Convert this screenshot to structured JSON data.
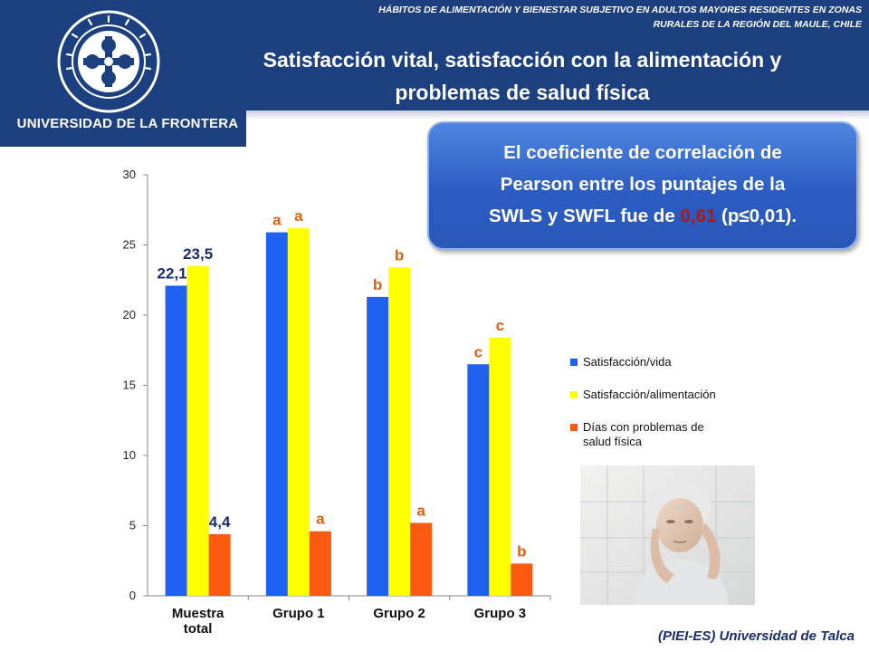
{
  "header": {
    "top_note_line1": "HÁBITOS DE ALIMENTACIÓN Y BIENESTAR SUBJETIVO EN ADULTOS MAYORES RESIDENTES EN ZONAS",
    "top_note_line2": "RURALES DE LA REGIÓN DEL MAULE, CHILE",
    "title_line1": "Satisfacción vital, satisfacción con la alimentación y",
    "title_line2": "problemas de salud física",
    "logo_name": "UNIVERSIDAD DE LA FRONTERA"
  },
  "callout": {
    "line1": "El coeficiente de correlación de",
    "line2": "Pearson entre los puntajes de la",
    "line3_pre": "SWLS y SWFL fue de ",
    "line3_value": "0,61",
    "line3_post": " (p≤0,01)."
  },
  "footer": {
    "text": "(PIEI-ES) Universidad de Talca"
  },
  "colors": {
    "header_bg": "#1b3f7f",
    "series_1": "#1f62f0",
    "series_2": "#ffff00",
    "series_3": "#fb5a10",
    "letter_label": "#e0600e",
    "value_label": "#1a2e6e"
  },
  "chart_data": {
    "type": "bar",
    "categories": [
      [
        "Muestra",
        "total"
      ],
      [
        "Grupo 1"
      ],
      [
        "Grupo 2"
      ],
      [
        "Grupo 3"
      ]
    ],
    "series": [
      {
        "name": "Satisfacción/vida",
        "values": [
          22.1,
          25.9,
          21.3,
          16.5
        ]
      },
      {
        "name": "Satisfacción/alimentación",
        "values": [
          23.5,
          26.2,
          23.4,
          18.4
        ]
      },
      {
        "name": "Días con problemas de salud física",
        "values": [
          4.4,
          4.6,
          5.2,
          2.3
        ]
      }
    ],
    "legend_lines": [
      [
        "Satisfacción/vida"
      ],
      [
        "Satisfacción/alimentación"
      ],
      [
        "Días con problemas de",
        "salud física"
      ]
    ],
    "value_labels": [
      {
        "category": 0,
        "series": 0,
        "text": "22,1"
      },
      {
        "category": 0,
        "series": 1,
        "text": "23,5"
      },
      {
        "category": 0,
        "series": 2,
        "text": "4,4"
      }
    ],
    "letter_labels": [
      {
        "category": 1,
        "series": 0,
        "text": "a"
      },
      {
        "category": 1,
        "series": 1,
        "text": "a"
      },
      {
        "category": 1,
        "series": 2,
        "text": "a"
      },
      {
        "category": 2,
        "series": 0,
        "text": "b"
      },
      {
        "category": 2,
        "series": 1,
        "text": "b"
      },
      {
        "category": 2,
        "series": 2,
        "text": "a"
      },
      {
        "category": 3,
        "series": 0,
        "text": "c"
      },
      {
        "category": 3,
        "series": 1,
        "text": "c"
      },
      {
        "category": 3,
        "series": 2,
        "text": "b"
      }
    ],
    "yticks": [
      0,
      5,
      10,
      15,
      20,
      25,
      30
    ],
    "ylim": [
      0,
      30
    ],
    "grid": false,
    "legend_position": "right"
  }
}
